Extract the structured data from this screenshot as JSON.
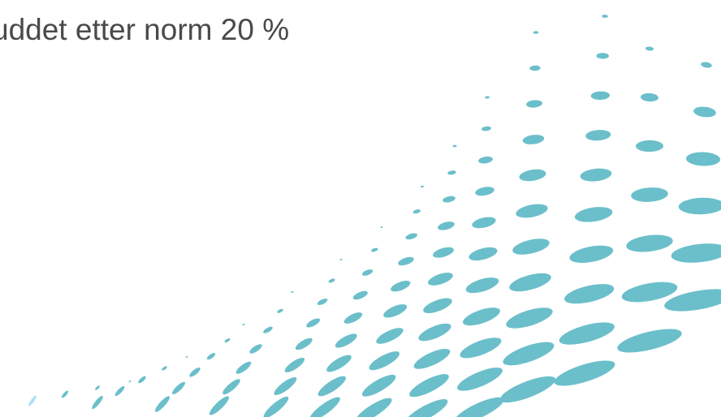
{
  "slide": {
    "title": "uddet etter norm 20 %"
  },
  "decoration": {
    "icon": "halftone-dot-wave",
    "color": "#6bbfca",
    "highlight_color": "#aee0f4"
  }
}
